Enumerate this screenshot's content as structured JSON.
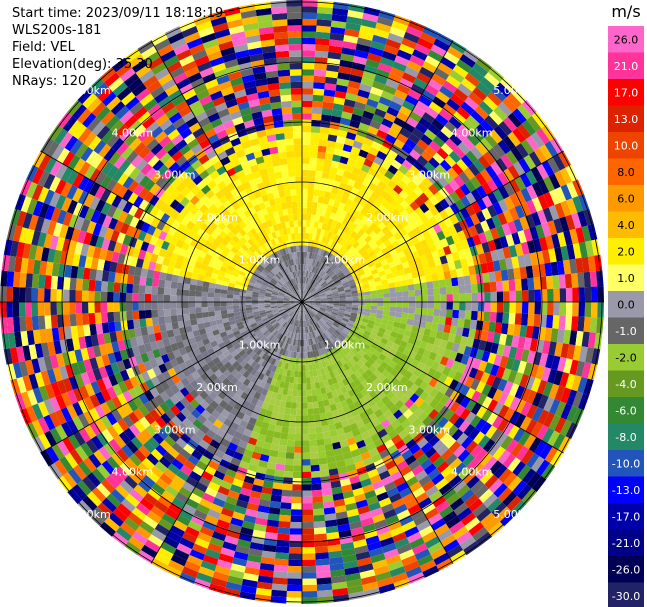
{
  "header": {
    "start_time": "Start time: 2023/09/11 18:18:19",
    "instrument": "WLS200s-181",
    "field": "Field: VEL",
    "elevation": "Elevation(deg): 35.30",
    "nrays": "NRays: 120"
  },
  "colorbar": {
    "unit": "m/s",
    "ticks": [
      "26.0",
      "21.0",
      "17.0",
      "13.0",
      "10.0",
      "8.0",
      "6.0",
      "4.0",
      "2.0",
      "1.0",
      "0.0",
      "-1.0",
      "-2.0",
      "-4.0",
      "-6.0",
      "-8.0",
      "-10.0",
      "-13.0",
      "-17.0",
      "-21.0",
      "-26.0",
      "-30.0"
    ],
    "colors": [
      "#ff66cc",
      "#ff3399",
      "#ff0000",
      "#dd2200",
      "#ee4400",
      "#ff6600",
      "#ff9900",
      "#ffbb00",
      "#ffee00",
      "#ffff66",
      "#9999aa",
      "#666666",
      "#99cc33",
      "#669922",
      "#338833",
      "#228866",
      "#2255bb",
      "#0000ff",
      "#0000aa",
      "#000088",
      "#000055",
      "#222266"
    ]
  },
  "ppi": {
    "rings_km": [
      "1.00km",
      "2.00km",
      "3.00km",
      "4.00km",
      "5.00km"
    ],
    "n_rays": 120
  }
}
